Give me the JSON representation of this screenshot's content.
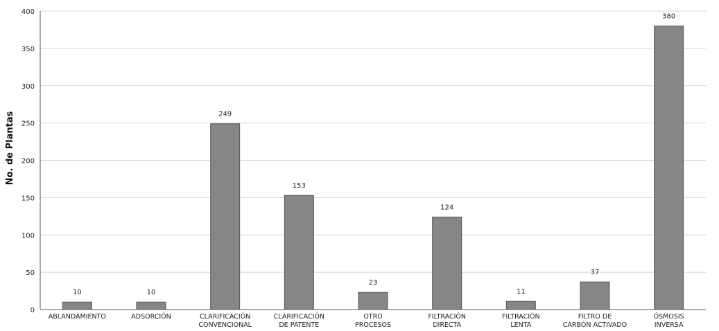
{
  "chart_data": {
    "type": "bar",
    "title": "",
    "xlabel": "",
    "ylabel": "No. de Plantas",
    "ylim": [
      0,
      400
    ],
    "yticks": [
      0,
      50,
      100,
      150,
      200,
      250,
      300,
      350,
      400
    ],
    "grid": "horizontal",
    "categories": [
      [
        "ABLANDAMIENTO"
      ],
      [
        "ADSORCIÓN"
      ],
      [
        "CLARIFICACIÓN",
        "CONVENCIONAL"
      ],
      [
        "CLARIFICACIÓN",
        "DE PATENTE"
      ],
      [
        "OTRO",
        "PROCESOS"
      ],
      [
        "FILTRACIÓN",
        "DIRECTA"
      ],
      [
        "FILTRACIÓN",
        "LENTA"
      ],
      [
        "FILTRO DE",
        "CARBÓN ACTIVADO"
      ],
      [
        "ÓSMOSIS",
        "INVERSA"
      ]
    ],
    "values": [
      10,
      10,
      249,
      153,
      23,
      124,
      11,
      37,
      380
    ],
    "colors": {
      "bar": "#868686",
      "bar_edge": "#555555",
      "grid": "#d4d4d4",
      "axis": "#555555"
    }
  }
}
